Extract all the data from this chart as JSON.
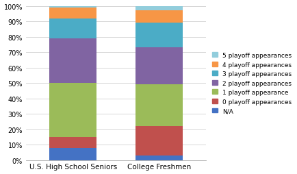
{
  "categories": [
    "U.S. High School Seniors",
    "College Freshmen"
  ],
  "segments": [
    {
      "label": "N/A",
      "color": "#4472C4",
      "values": [
        8,
        3
      ]
    },
    {
      "label": "0 playoff appearances",
      "color": "#C0504D",
      "values": [
        7,
        19
      ]
    },
    {
      "label": "1 playoff appearance",
      "color": "#9BBB59",
      "values": [
        35,
        27
      ]
    },
    {
      "label": "2 playoff appearances",
      "color": "#8064A2",
      "values": [
        29,
        24
      ]
    },
    {
      "label": "3 playoff appearances",
      "color": "#4BACC6",
      "values": [
        13,
        16
      ]
    },
    {
      "label": "4 playoff appearances",
      "color": "#F79646",
      "values": [
        7,
        8
      ]
    },
    {
      "label": "5 playoff appearances",
      "color": "#92CDDC",
      "values": [
        1,
        3
      ]
    }
  ],
  "ylim": [
    0,
    100
  ],
  "ytick_labels": [
    "0%",
    "10%",
    "20%",
    "30%",
    "40%",
    "50%",
    "60%",
    "70%",
    "80%",
    "90%",
    "100%"
  ],
  "ytick_values": [
    0,
    10,
    20,
    30,
    40,
    50,
    60,
    70,
    80,
    90,
    100
  ],
  "background_color": "#ffffff",
  "bar_width": 0.55,
  "legend_fontsize": 6.5,
  "tick_fontsize": 7,
  "xlabel_fontsize": 7.5
}
